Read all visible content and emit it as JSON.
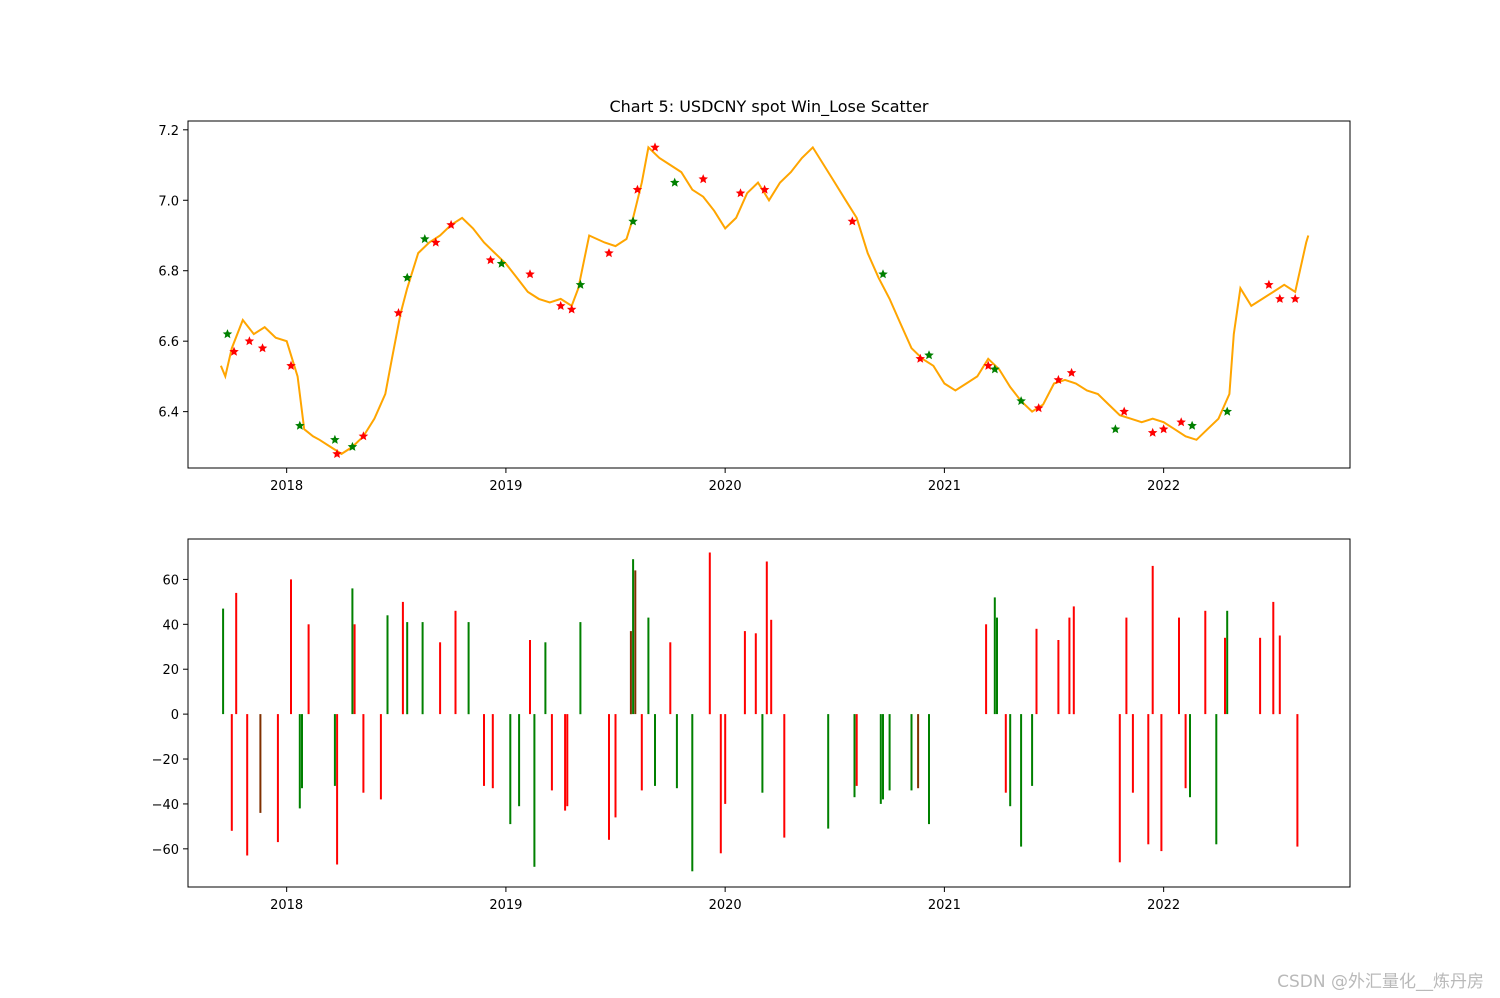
{
  "watermark": "CSDN @外汇量化__炼丹房",
  "chart_data": [
    {
      "type": "line",
      "title": "Chart 5: USDCNY spot Win_Lose Scatter",
      "xlabel": "",
      "ylabel": "",
      "xlim": [
        2017.55,
        2022.85
      ],
      "ylim": [
        6.24,
        7.225
      ],
      "x_ticks": [
        "2018",
        "2019",
        "2020",
        "2021",
        "2022"
      ],
      "y_ticks": [
        "6.4",
        "6.6",
        "6.8",
        "7.0",
        "7.2"
      ],
      "grid": false,
      "colors": {
        "line": "#ffa500",
        "win": "#008000",
        "lose": "#ff0000"
      },
      "series": [
        {
          "x": [
            2017.7,
            2017.72,
            2017.75,
            2017.8,
            2017.85,
            2017.9,
            2017.95,
            2018.0,
            2018.05,
            2018.08,
            2018.12,
            2018.15,
            2018.2,
            2018.25,
            2018.3,
            2018.35,
            2018.4,
            2018.45,
            2018.48,
            2018.52,
            2018.55,
            2018.6,
            2018.65,
            2018.7,
            2018.75,
            2018.8,
            2018.85,
            2018.9,
            2018.95,
            2019.0,
            2019.05,
            2019.1,
            2019.15,
            2019.2,
            2019.25,
            2019.3,
            2019.33,
            2019.38,
            2019.45,
            2019.5,
            2019.55,
            2019.58,
            2019.62,
            2019.65,
            2019.7,
            2019.75,
            2019.8,
            2019.85,
            2019.9,
            2019.95,
            2020.0,
            2020.05,
            2020.1,
            2020.15,
            2020.2,
            2020.25,
            2020.3,
            2020.35,
            2020.4,
            2020.45,
            2020.5,
            2020.55,
            2020.6,
            2020.65,
            2020.7,
            2020.75,
            2020.8,
            2020.85,
            2020.9,
            2020.95,
            2021.0,
            2021.05,
            2021.1,
            2021.15,
            2021.2,
            2021.25,
            2021.3,
            2021.35,
            2021.4,
            2021.45,
            2021.5,
            2021.55,
            2021.6,
            2021.65,
            2021.7,
            2021.75,
            2021.8,
            2021.85,
            2021.9,
            2021.95,
            2022.0,
            2022.05,
            2022.1,
            2022.15,
            2022.2,
            2022.25,
            2022.3,
            2022.32,
            2022.35,
            2022.4,
            2022.45,
            2022.5,
            2022.55,
            2022.6,
            2022.65,
            2022.66
          ],
          "y": [
            6.53,
            6.5,
            6.58,
            6.66,
            6.62,
            6.64,
            6.61,
            6.6,
            6.5,
            6.35,
            6.33,
            6.32,
            6.3,
            6.28,
            6.3,
            6.33,
            6.38,
            6.45,
            6.55,
            6.68,
            6.75,
            6.85,
            6.88,
            6.9,
            6.93,
            6.95,
            6.92,
            6.88,
            6.85,
            6.82,
            6.78,
            6.74,
            6.72,
            6.71,
            6.72,
            6.7,
            6.75,
            6.9,
            6.88,
            6.87,
            6.89,
            6.95,
            7.05,
            7.15,
            7.12,
            7.1,
            7.08,
            7.03,
            7.01,
            6.97,
            6.92,
            6.95,
            7.02,
            7.05,
            7.0,
            7.05,
            7.08,
            7.12,
            7.15,
            7.1,
            7.05,
            7.0,
            6.95,
            6.85,
            6.78,
            6.72,
            6.65,
            6.58,
            6.55,
            6.53,
            6.48,
            6.46,
            6.48,
            6.5,
            6.55,
            6.52,
            6.47,
            6.43,
            6.4,
            6.42,
            6.48,
            6.49,
            6.48,
            6.46,
            6.45,
            6.42,
            6.39,
            6.38,
            6.37,
            6.38,
            6.37,
            6.35,
            6.33,
            6.32,
            6.35,
            6.38,
            6.45,
            6.62,
            6.75,
            6.7,
            6.72,
            6.74,
            6.76,
            6.74,
            6.88,
            6.9
          ]
        }
      ],
      "markers": {
        "win": [
          [
            2017.73,
            6.62
          ],
          [
            2018.06,
            6.36
          ],
          [
            2018.22,
            6.32
          ],
          [
            2018.3,
            6.3
          ],
          [
            2018.55,
            6.78
          ],
          [
            2018.63,
            6.89
          ],
          [
            2018.98,
            6.82
          ],
          [
            2019.34,
            6.76
          ],
          [
            2019.58,
            6.94
          ],
          [
            2019.77,
            7.05
          ],
          [
            2020.93,
            6.56
          ],
          [
            2021.23,
            6.52
          ],
          [
            2021.35,
            6.43
          ],
          [
            2022.13,
            6.36
          ],
          [
            2022.29,
            6.4
          ],
          [
            2020.72,
            6.79
          ],
          [
            2021.78,
            6.35
          ]
        ],
        "lose": [
          [
            2017.76,
            6.57
          ],
          [
            2017.83,
            6.6
          ],
          [
            2017.89,
            6.58
          ],
          [
            2018.02,
            6.53
          ],
          [
            2018.23,
            6.28
          ],
          [
            2018.35,
            6.33
          ],
          [
            2018.51,
            6.68
          ],
          [
            2018.68,
            6.88
          ],
          [
            2018.75,
            6.93
          ],
          [
            2018.93,
            6.83
          ],
          [
            2019.11,
            6.79
          ],
          [
            2019.25,
            6.7
          ],
          [
            2019.3,
            6.69
          ],
          [
            2019.47,
            6.85
          ],
          [
            2019.6,
            7.03
          ],
          [
            2019.68,
            7.15
          ],
          [
            2019.9,
            7.06
          ],
          [
            2020.07,
            7.02
          ],
          [
            2020.18,
            7.03
          ],
          [
            2020.58,
            6.94
          ],
          [
            2020.89,
            6.55
          ],
          [
            2021.2,
            6.53
          ],
          [
            2021.43,
            6.41
          ],
          [
            2021.52,
            6.49
          ],
          [
            2021.58,
            6.51
          ],
          [
            2021.82,
            6.4
          ],
          [
            2021.95,
            6.34
          ],
          [
            2022.0,
            6.35
          ],
          [
            2022.08,
            6.37
          ],
          [
            2022.48,
            6.76
          ],
          [
            2022.53,
            6.72
          ],
          [
            2022.6,
            6.72
          ]
        ]
      }
    },
    {
      "type": "bar",
      "title": "",
      "xlabel": "",
      "ylabel": "",
      "xlim": [
        2017.55,
        2022.85
      ],
      "ylim": [
        -77,
        78
      ],
      "x_ticks": [
        "2018",
        "2019",
        "2020",
        "2021",
        "2022"
      ],
      "y_ticks": [
        "−60",
        "−40",
        "−20",
        "0",
        "20",
        "40",
        "60"
      ],
      "grid": false,
      "colors": {
        "win": "#008000",
        "lose": "#ff0000",
        "overlap": "#803000"
      },
      "bars": [
        {
          "x": 2017.71,
          "v": 47,
          "c": "win"
        },
        {
          "x": 2017.75,
          "v": -52,
          "c": "lose"
        },
        {
          "x": 2017.77,
          "v": 54,
          "c": "lose"
        },
        {
          "x": 2017.82,
          "v": -63,
          "c": "lose"
        },
        {
          "x": 2017.88,
          "v": -44,
          "c": "overlap"
        },
        {
          "x": 2017.96,
          "v": -57,
          "c": "lose"
        },
        {
          "x": 2018.02,
          "v": 60,
          "c": "lose"
        },
        {
          "x": 2018.06,
          "v": -42,
          "c": "win"
        },
        {
          "x": 2018.07,
          "v": -33,
          "c": "win"
        },
        {
          "x": 2018.1,
          "v": 40,
          "c": "lose"
        },
        {
          "x": 2018.22,
          "v": -32,
          "c": "win"
        },
        {
          "x": 2018.23,
          "v": -67,
          "c": "lose"
        },
        {
          "x": 2018.3,
          "v": 56,
          "c": "win"
        },
        {
          "x": 2018.31,
          "v": 40,
          "c": "lose"
        },
        {
          "x": 2018.35,
          "v": -35,
          "c": "lose"
        },
        {
          "x": 2018.43,
          "v": -38,
          "c": "lose"
        },
        {
          "x": 2018.46,
          "v": 44,
          "c": "win"
        },
        {
          "x": 2018.53,
          "v": 50,
          "c": "lose"
        },
        {
          "x": 2018.55,
          "v": 41,
          "c": "win"
        },
        {
          "x": 2018.62,
          "v": 41,
          "c": "win"
        },
        {
          "x": 2018.7,
          "v": 32,
          "c": "lose"
        },
        {
          "x": 2018.77,
          "v": 46,
          "c": "lose"
        },
        {
          "x": 2018.83,
          "v": 41,
          "c": "win"
        },
        {
          "x": 2018.9,
          "v": -32,
          "c": "lose"
        },
        {
          "x": 2018.94,
          "v": -33,
          "c": "lose"
        },
        {
          "x": 2019.02,
          "v": -49,
          "c": "win"
        },
        {
          "x": 2019.06,
          "v": -41,
          "c": "win"
        },
        {
          "x": 2019.11,
          "v": 33,
          "c": "lose"
        },
        {
          "x": 2019.13,
          "v": -68,
          "c": "win"
        },
        {
          "x": 2019.18,
          "v": 32,
          "c": "win"
        },
        {
          "x": 2019.21,
          "v": -34,
          "c": "lose"
        },
        {
          "x": 2019.27,
          "v": -43,
          "c": "lose"
        },
        {
          "x": 2019.28,
          "v": -41,
          "c": "lose"
        },
        {
          "x": 2019.34,
          "v": 41,
          "c": "win"
        },
        {
          "x": 2019.47,
          "v": -56,
          "c": "lose"
        },
        {
          "x": 2019.5,
          "v": -46,
          "c": "lose"
        },
        {
          "x": 2019.57,
          "v": 37,
          "c": "overlap"
        },
        {
          "x": 2019.58,
          "v": 69,
          "c": "win"
        },
        {
          "x": 2019.59,
          "v": 64,
          "c": "overlap"
        },
        {
          "x": 2019.62,
          "v": -34,
          "c": "lose"
        },
        {
          "x": 2019.65,
          "v": 43,
          "c": "win"
        },
        {
          "x": 2019.68,
          "v": -32,
          "c": "win"
        },
        {
          "x": 2019.75,
          "v": 32,
          "c": "lose"
        },
        {
          "x": 2019.78,
          "v": -33,
          "c": "win"
        },
        {
          "x": 2019.85,
          "v": -70,
          "c": "win"
        },
        {
          "x": 2019.93,
          "v": 72,
          "c": "lose"
        },
        {
          "x": 2019.98,
          "v": -62,
          "c": "lose"
        },
        {
          "x": 2020.0,
          "v": -40,
          "c": "lose"
        },
        {
          "x": 2020.09,
          "v": 37,
          "c": "lose"
        },
        {
          "x": 2020.14,
          "v": 36,
          "c": "lose"
        },
        {
          "x": 2020.17,
          "v": -35,
          "c": "win"
        },
        {
          "x": 2020.19,
          "v": 68,
          "c": "lose"
        },
        {
          "x": 2020.21,
          "v": 42,
          "c": "lose"
        },
        {
          "x": 2020.27,
          "v": -55,
          "c": "lose"
        },
        {
          "x": 2020.47,
          "v": -51,
          "c": "win"
        },
        {
          "x": 2020.59,
          "v": -37,
          "c": "win"
        },
        {
          "x": 2020.6,
          "v": -32,
          "c": "lose"
        },
        {
          "x": 2020.71,
          "v": -40,
          "c": "win"
        },
        {
          "x": 2020.72,
          "v": -38,
          "c": "win"
        },
        {
          "x": 2020.75,
          "v": -34,
          "c": "win"
        },
        {
          "x": 2020.85,
          "v": -34,
          "c": "win"
        },
        {
          "x": 2020.88,
          "v": -33,
          "c": "overlap"
        },
        {
          "x": 2020.93,
          "v": -49,
          "c": "win"
        },
        {
          "x": 2021.19,
          "v": 40,
          "c": "lose"
        },
        {
          "x": 2021.23,
          "v": 52,
          "c": "win"
        },
        {
          "x": 2021.24,
          "v": 43,
          "c": "win"
        },
        {
          "x": 2021.28,
          "v": -35,
          "c": "lose"
        },
        {
          "x": 2021.3,
          "v": -41,
          "c": "win"
        },
        {
          "x": 2021.35,
          "v": -59,
          "c": "win"
        },
        {
          "x": 2021.4,
          "v": -32,
          "c": "win"
        },
        {
          "x": 2021.42,
          "v": 38,
          "c": "lose"
        },
        {
          "x": 2021.52,
          "v": 33,
          "c": "lose"
        },
        {
          "x": 2021.57,
          "v": 43,
          "c": "lose"
        },
        {
          "x": 2021.59,
          "v": 48,
          "c": "lose"
        },
        {
          "x": 2021.8,
          "v": -66,
          "c": "lose"
        },
        {
          "x": 2021.83,
          "v": 43,
          "c": "lose"
        },
        {
          "x": 2021.86,
          "v": -35,
          "c": "lose"
        },
        {
          "x": 2021.93,
          "v": -58,
          "c": "lose"
        },
        {
          "x": 2021.95,
          "v": 66,
          "c": "lose"
        },
        {
          "x": 2021.99,
          "v": -61,
          "c": "lose"
        },
        {
          "x": 2022.07,
          "v": 43,
          "c": "lose"
        },
        {
          "x": 2022.1,
          "v": -33,
          "c": "lose"
        },
        {
          "x": 2022.12,
          "v": -37,
          "c": "win"
        },
        {
          "x": 2022.19,
          "v": 46,
          "c": "lose"
        },
        {
          "x": 2022.24,
          "v": -58,
          "c": "win"
        },
        {
          "x": 2022.28,
          "v": 34,
          "c": "lose"
        },
        {
          "x": 2022.29,
          "v": 46,
          "c": "win"
        },
        {
          "x": 2022.44,
          "v": 34,
          "c": "lose"
        },
        {
          "x": 2022.5,
          "v": 50,
          "c": "lose"
        },
        {
          "x": 2022.53,
          "v": 35,
          "c": "lose"
        },
        {
          "x": 2022.61,
          "v": -59,
          "c": "lose"
        }
      ]
    }
  ]
}
